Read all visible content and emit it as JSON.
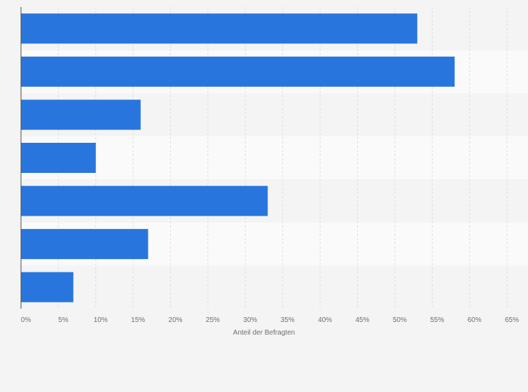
{
  "chart_data": {
    "type": "bar",
    "orientation": "horizontal",
    "categories": [
      "",
      "",
      "",
      "",
      "",
      "",
      ""
    ],
    "values": [
      53,
      58,
      16,
      10,
      33,
      17,
      7
    ],
    "xlabel": "Anteil der Befragten",
    "ylabel": "",
    "xlim": [
      0,
      65
    ],
    "x_ticks": [
      0,
      5,
      10,
      15,
      20,
      25,
      30,
      35,
      40,
      45,
      50,
      55,
      60,
      65
    ],
    "x_tick_labels": [
      "0%",
      "5%",
      "10%",
      "15%",
      "20%",
      "25%",
      "30%",
      "35%",
      "40%",
      "45%",
      "50%",
      "55%",
      "60%",
      "65%"
    ],
    "grid": true,
    "legend": "none",
    "colors": {
      "bar": "#2876dd",
      "background": "#f4f4f4",
      "band_light": "#fafafa",
      "band_dark": "#f4f4f4",
      "grid": "#dcdcdc",
      "axis": "#4a4a4a"
    }
  }
}
